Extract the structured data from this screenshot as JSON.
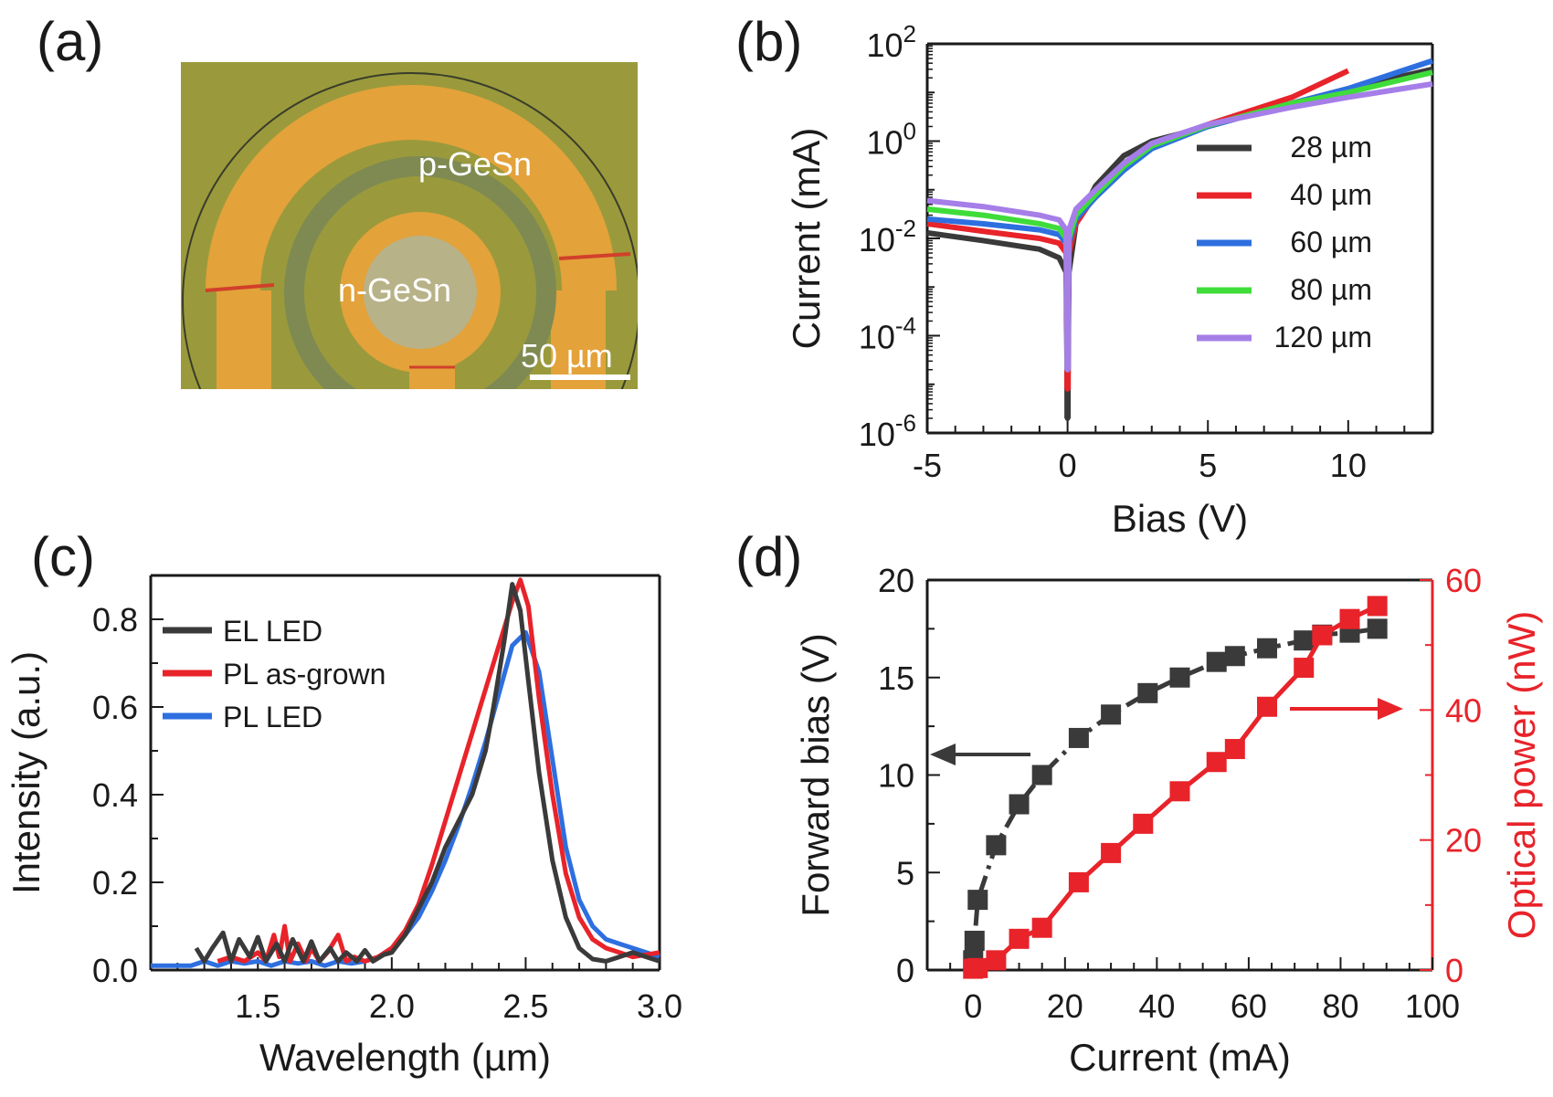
{
  "figure": {
    "panel_labels": [
      "(a)",
      "(b)",
      "(c)",
      "(d)"
    ]
  },
  "micrograph": {
    "p_label": "p-GeSn",
    "n_label": "n-GeSn",
    "scale_bar": "50 µm",
    "colors": {
      "background": "#9a9a3c",
      "metal": "#e3a23a",
      "ring": "#7e8a52",
      "center": "#b8b288",
      "edge": "#d1402a"
    }
  },
  "chart_data": [
    {
      "panel": "(b)",
      "type": "line",
      "xlabel": "Bias (V)",
      "ylabel": "Current (mA)",
      "yscale": "log",
      "xlim": [
        -5,
        13
      ],
      "ylim": [
        1e-06,
        100
      ],
      "xticks": [
        -5,
        0,
        5,
        10
      ],
      "xtick_labels": [
        "-5",
        "0",
        "5",
        "10"
      ],
      "yticks": [
        1e-06,
        0.0001,
        0.01,
        1,
        100
      ],
      "ytick_labels": [
        {
          "base": "10",
          "exp": "-6"
        },
        {
          "base": "10",
          "exp": "-4"
        },
        {
          "base": "10",
          "exp": "-2"
        },
        {
          "base": "10",
          "exp": "0"
        },
        {
          "base": "10",
          "exp": "2"
        }
      ],
      "legend_position": "right",
      "series": [
        {
          "name": "28 µm",
          "color": "#3a3a3a",
          "min": 2e-06,
          "x": [
            -5,
            -3,
            -1,
            -0.3,
            -0.05,
            0,
            0.05,
            0.3,
            1,
            2,
            3,
            5,
            8,
            10,
            13
          ],
          "y": [
            0.013,
            0.009,
            0.006,
            0.004,
            0.002,
            2e-06,
            0.002,
            0.02,
            0.12,
            0.5,
            1.0,
            2.0,
            6,
            12,
            30
          ]
        },
        {
          "name": "40 µm",
          "color": "#e8232a",
          "min": 8e-06,
          "x": [
            -5,
            -3,
            -1,
            -0.3,
            -0.05,
            0,
            0.05,
            0.3,
            1,
            2,
            3,
            5,
            8,
            10
          ],
          "y": [
            0.02,
            0.014,
            0.01,
            0.008,
            0.005,
            8e-06,
            0.005,
            0.02,
            0.08,
            0.3,
            0.8,
            2.2,
            8,
            28
          ]
        },
        {
          "name": "60 µm",
          "color": "#2e6fe0",
          "min": 2e-05,
          "x": [
            -5,
            -3,
            -1,
            -0.3,
            -0.05,
            0,
            0.05,
            0.3,
            1,
            2,
            3,
            5,
            8,
            10,
            13
          ],
          "y": [
            0.025,
            0.02,
            0.015,
            0.012,
            0.008,
            2e-05,
            0.008,
            0.025,
            0.07,
            0.25,
            0.7,
            2.0,
            6,
            12,
            45
          ]
        },
        {
          "name": "80 µm",
          "color": "#3fdc3a",
          "min": 2e-05,
          "x": [
            -5,
            -3,
            -1,
            -0.3,
            -0.05,
            0,
            0.05,
            0.3,
            1,
            2,
            3,
            5,
            8,
            10,
            13
          ],
          "y": [
            0.04,
            0.03,
            0.02,
            0.016,
            0.01,
            2e-05,
            0.01,
            0.03,
            0.08,
            0.3,
            0.8,
            2.1,
            6,
            10,
            26
          ]
        },
        {
          "name": "120 µm",
          "color": "#a67ee8",
          "min": 2e-05,
          "x": [
            -5,
            -3,
            -1,
            -0.3,
            -0.05,
            0,
            0.05,
            0.3,
            1,
            2,
            3,
            5,
            8,
            10,
            13
          ],
          "y": [
            0.06,
            0.045,
            0.03,
            0.024,
            0.015,
            2e-05,
            0.015,
            0.04,
            0.1,
            0.35,
            0.9,
            2.2,
            5,
            8,
            15
          ]
        }
      ]
    },
    {
      "panel": "(c)",
      "type": "line",
      "xlabel": "Wavelength (µm)",
      "ylabel": "Intensity (a.u.)",
      "xlim": [
        1.1,
        3.0
      ],
      "ylim": [
        0,
        0.9
      ],
      "xticks": [
        1.5,
        2.0,
        2.5,
        3.0
      ],
      "xtick_labels": [
        "1.5",
        "2.0",
        "2.5",
        "3.0"
      ],
      "yticks": [
        0.0,
        0.2,
        0.4,
        0.6,
        0.8
      ],
      "ytick_labels": [
        "0.0",
        "0.2",
        "0.4",
        "0.6",
        "0.8"
      ],
      "legend_position": "top-left",
      "series": [
        {
          "name": "EL LED",
          "color": "#3a3a3a",
          "x": [
            1.27,
            1.3,
            1.33,
            1.37,
            1.4,
            1.43,
            1.47,
            1.5,
            1.53,
            1.57,
            1.6,
            1.63,
            1.67,
            1.7,
            1.73,
            1.77,
            1.8,
            1.83,
            1.87,
            1.9,
            1.93,
            1.97,
            2.0,
            2.05,
            2.1,
            2.15,
            2.2,
            2.25,
            2.3,
            2.35,
            2.38,
            2.42,
            2.45,
            2.48,
            2.51,
            2.55,
            2.6,
            2.65,
            2.7,
            2.75,
            2.8,
            2.85,
            2.9,
            2.95,
            3.0
          ],
          "y": [
            0.05,
            0.02,
            0.05,
            0.085,
            0.02,
            0.07,
            0.03,
            0.075,
            0.02,
            0.06,
            0.02,
            0.07,
            0.02,
            0.065,
            0.02,
            0.05,
            0.02,
            0.04,
            0.02,
            0.045,
            0.02,
            0.035,
            0.04,
            0.08,
            0.14,
            0.2,
            0.28,
            0.34,
            0.4,
            0.5,
            0.6,
            0.75,
            0.88,
            0.82,
            0.66,
            0.45,
            0.25,
            0.12,
            0.05,
            0.025,
            0.02,
            0.03,
            0.04,
            0.03,
            0.02
          ]
        },
        {
          "name": "PL as-grown",
          "color": "#e8232a",
          "x": [
            1.35,
            1.4,
            1.45,
            1.5,
            1.53,
            1.56,
            1.58,
            1.6,
            1.62,
            1.65,
            1.68,
            1.7,
            1.73,
            1.76,
            1.8,
            1.83,
            1.86,
            1.9,
            1.95,
            2.0,
            2.05,
            2.1,
            2.15,
            2.2,
            2.25,
            2.3,
            2.35,
            2.4,
            2.45,
            2.48,
            2.51,
            2.55,
            2.6,
            2.65,
            2.7,
            2.75,
            2.8,
            2.85,
            2.9,
            2.95,
            3.0
          ],
          "y": [
            0.02,
            0.03,
            0.02,
            0.04,
            0.02,
            0.08,
            0.03,
            0.1,
            0.02,
            0.06,
            0.02,
            0.05,
            0.02,
            0.04,
            0.08,
            0.02,
            0.03,
            0.02,
            0.03,
            0.05,
            0.09,
            0.15,
            0.24,
            0.34,
            0.44,
            0.54,
            0.64,
            0.74,
            0.84,
            0.89,
            0.83,
            0.62,
            0.4,
            0.22,
            0.12,
            0.07,
            0.05,
            0.04,
            0.03,
            0.035,
            0.04
          ]
        },
        {
          "name": "PL LED",
          "color": "#2e6fe0",
          "x": [
            1.1,
            1.15,
            1.2,
            1.25,
            1.3,
            1.35,
            1.4,
            1.45,
            1.5,
            1.55,
            1.6,
            1.65,
            1.7,
            1.75,
            1.8,
            1.85,
            1.9,
            1.95,
            2.0,
            2.05,
            2.1,
            2.15,
            2.2,
            2.25,
            2.3,
            2.35,
            2.4,
            2.45,
            2.5,
            2.55,
            2.6,
            2.65,
            2.7,
            2.75,
            2.8,
            2.85,
            2.9,
            2.95,
            3.0
          ],
          "y": [
            0.01,
            0.01,
            0.01,
            0.01,
            0.02,
            0.01,
            0.02,
            0.015,
            0.02,
            0.01,
            0.02,
            0.015,
            0.02,
            0.01,
            0.02,
            0.015,
            0.02,
            0.03,
            0.05,
            0.08,
            0.12,
            0.18,
            0.25,
            0.33,
            0.42,
            0.52,
            0.63,
            0.74,
            0.77,
            0.68,
            0.48,
            0.28,
            0.16,
            0.1,
            0.07,
            0.06,
            0.05,
            0.04,
            0.03
          ]
        }
      ]
    },
    {
      "panel": "(d)",
      "type": "scatter",
      "xlabel": "Current (mA)",
      "ylabel_left": "Forward bias (V)",
      "ylabel_right": "Optical power (nW)",
      "xlim": [
        -10,
        100
      ],
      "ylim_left": [
        0,
        20
      ],
      "ylim_right": [
        0,
        60
      ],
      "xticks": [
        0,
        20,
        40,
        60,
        80,
        100
      ],
      "xtick_labels": [
        "0",
        "20",
        "40",
        "60",
        "80",
        "100"
      ],
      "yticks_left": [
        0,
        5,
        10,
        15,
        20
      ],
      "ytick_labels_left": [
        "0",
        "5",
        "10",
        "15",
        "20"
      ],
      "yticks_right": [
        0,
        20,
        40,
        60
      ],
      "ytick_labels_right": [
        "0",
        "20",
        "40",
        "60"
      ],
      "series": [
        {
          "name": "Forward bias",
          "axis": "left",
          "color": "#3a3a3a",
          "line": "dash-dot",
          "x": [
            0,
            0.3,
            1,
            5,
            10,
            15,
            23,
            30,
            38,
            45,
            53,
            57,
            64,
            72,
            76,
            82,
            88
          ],
          "y": [
            0.5,
            1.5,
            3.6,
            6.4,
            8.5,
            10.0,
            11.9,
            13.1,
            14.2,
            15.0,
            15.8,
            16.1,
            16.5,
            16.9,
            17.2,
            17.3,
            17.5
          ]
        },
        {
          "name": "Optical power",
          "axis": "right",
          "color": "#e8232a",
          "line": "solid",
          "x": [
            0,
            1,
            5,
            10,
            15,
            23,
            30,
            37,
            45,
            53,
            57,
            64,
            72,
            76,
            82,
            88
          ],
          "y": [
            0.2,
            0.3,
            1.5,
            4.8,
            6.5,
            13.5,
            18.0,
            22.5,
            27.5,
            32.0,
            34.0,
            40.5,
            46.5,
            51.5,
            54.0,
            56.0
          ]
        }
      ],
      "arrows": [
        {
          "direction": "left",
          "color": "#3a3a3a"
        },
        {
          "direction": "right",
          "color": "#e8232a"
        }
      ]
    }
  ]
}
